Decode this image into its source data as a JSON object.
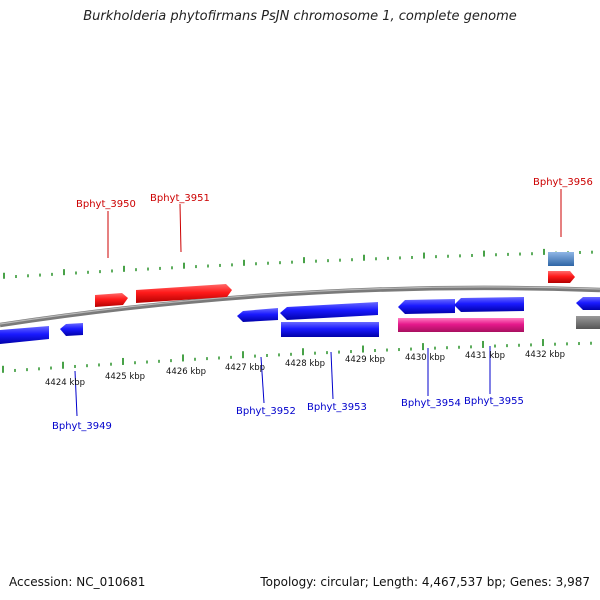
{
  "title": "Burkholderia phytofirmans PsJN chromosome 1, complete genome",
  "footer": {
    "accession": "Accession: NC_010681",
    "summary": "Topology: circular; Length: 4,467,537 bp; Genes: 3,987"
  },
  "colors": {
    "forward": "#ff1a1a",
    "reverse": "#1a1aff",
    "rna": "#e6198c",
    "grey": "#777777",
    "steelblue": "#4f86c6",
    "tick": "#1a8a1a",
    "label_forward": "#cc0000",
    "label_reverse": "#0000cc"
  },
  "kbp_labels": [
    "4424 kbp",
    "4425 kbp",
    "4426 kbp",
    "4427 kbp",
    "4428 kbp",
    "4429 kbp",
    "4430 kbp",
    "4431 kbp",
    "4432 kbp"
  ],
  "gene_labels_forward": [
    "Bphyt_3950",
    "Bphyt_3951",
    "Bphyt_3956"
  ],
  "gene_labels_reverse": [
    "Bphyt_3949",
    "Bphyt_3952",
    "Bphyt_3953",
    "Bphyt_3954",
    "Bphyt_3955"
  ]
}
